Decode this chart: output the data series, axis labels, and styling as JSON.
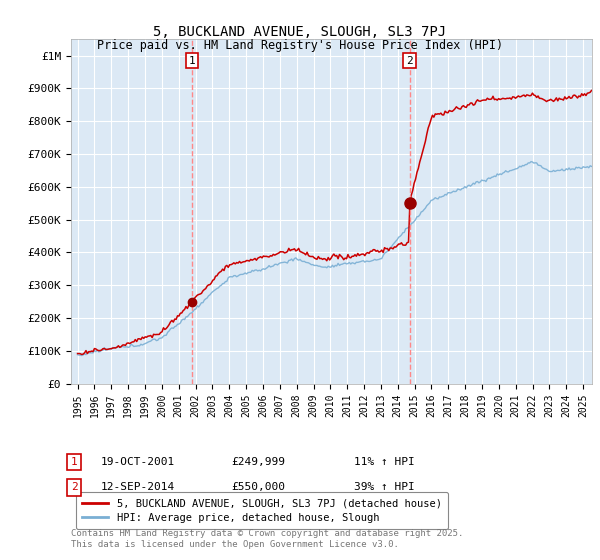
{
  "title": "5, BUCKLAND AVENUE, SLOUGH, SL3 7PJ",
  "subtitle": "Price paid vs. HM Land Registry's House Price Index (HPI)",
  "bg_color": "#dce9f5",
  "line1_color": "#cc0000",
  "line2_color": "#7aafd4",
  "ylim": [
    0,
    1050000
  ],
  "yticks": [
    0,
    100000,
    200000,
    300000,
    400000,
    500000,
    600000,
    700000,
    800000,
    900000,
    1000000
  ],
  "ytick_labels": [
    "£0",
    "£100K",
    "£200K",
    "£300K",
    "£400K",
    "£500K",
    "£600K",
    "£700K",
    "£800K",
    "£900K",
    "£1M"
  ],
  "year_start": 1995,
  "year_end": 2025,
  "purchase1_year": 2001.8,
  "purchase1_price": 249999,
  "purchase2_year": 2014.7,
  "purchase2_price": 550000,
  "purchase1_date": "19-OCT-2001",
  "purchase1_amount": "£249,999",
  "purchase1_hpi": "11% ↑ HPI",
  "purchase2_date": "12-SEP-2014",
  "purchase2_amount": "£550,000",
  "purchase2_hpi": "39% ↑ HPI",
  "legend1_label": "5, BUCKLAND AVENUE, SLOUGH, SL3 7PJ (detached house)",
  "legend2_label": "HPI: Average price, detached house, Slough",
  "footer": "Contains HM Land Registry data © Crown copyright and database right 2025.\nThis data is licensed under the Open Government Licence v3.0.",
  "grid_color": "#ffffff",
  "vline_color": "#ff8888"
}
